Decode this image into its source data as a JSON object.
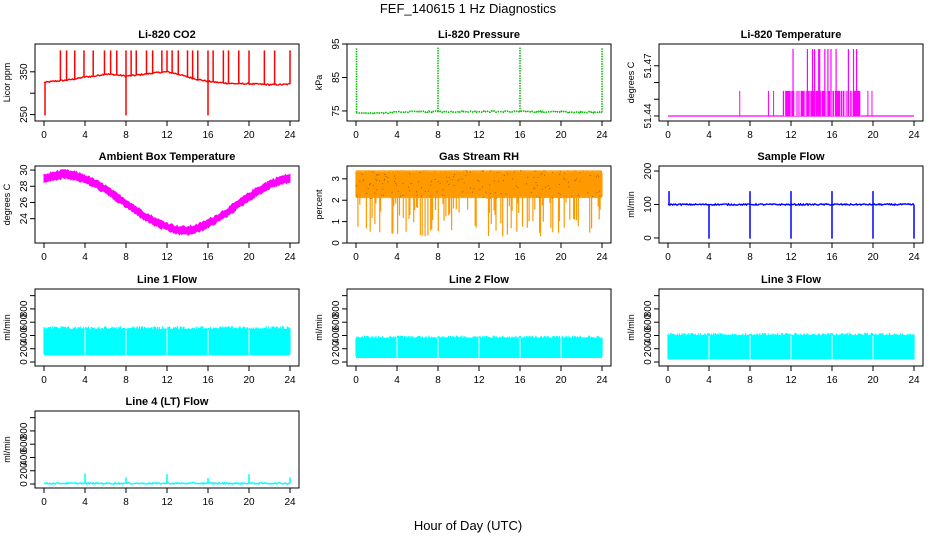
{
  "figure": {
    "title": "FEF_140615  1 Hz Diagnostics",
    "xlabel": "Hour of Day (UTC)"
  },
  "chart_data": [
    {
      "type": "line",
      "title": "Li-820 CO2",
      "ylabel": "Licor ppm",
      "xlim": [
        0,
        24
      ],
      "xticks": [
        0,
        4,
        8,
        12,
        16,
        20,
        24
      ],
      "ylim": [
        235,
        415
      ],
      "yticks": [
        250,
        300,
        350
      ],
      "ytick_labels": [
        "250",
        "",
        "350"
      ],
      "color": "#ff0000",
      "style": "line",
      "series": [
        {
          "x": [
            0,
            1,
            2,
            3,
            4,
            5,
            6,
            7,
            8,
            9,
            10,
            11,
            12,
            13,
            14,
            15,
            16,
            17,
            18,
            19,
            20,
            21,
            22,
            23,
            24
          ],
          "y": [
            325,
            328,
            330,
            333,
            338,
            340,
            345,
            343,
            340,
            342,
            345,
            348,
            350,
            345,
            338,
            332,
            328,
            325,
            323,
            322,
            322,
            321,
            320,
            320,
            321
          ],
          "spikes_up": [
            1.6,
            2.2,
            3.0,
            3.9,
            4.8,
            5.9,
            6.5,
            7.1,
            8.0,
            8.5,
            9.0,
            10.0,
            10.6,
            11.5,
            12.0,
            12.5,
            13.1,
            14.0,
            14.5,
            15.0,
            16.0,
            16.5,
            17.5,
            18.0,
            19.0,
            20.0,
            21.5,
            22.5,
            24.0
          ],
          "spike_top": 400,
          "spikes_down": [
            0.1,
            8.0,
            16.0
          ],
          "spike_bottom": 248
        }
      ]
    },
    {
      "type": "line",
      "title": "Li-820 Pressure",
      "ylabel": "kPa",
      "xlim": [
        0,
        24
      ],
      "xticks": [
        0,
        4,
        8,
        12,
        16,
        20,
        24
      ],
      "ylim": [
        72,
        95
      ],
      "yticks": [
        75,
        85,
        95
      ],
      "ytick_labels": [
        "75",
        "85",
        "95"
      ],
      "color": "#00bb00",
      "style": "dotted",
      "series": [
        {
          "x": [
            0,
            0.5,
            3.5,
            3.6,
            8,
            16,
            23.9,
            24
          ],
          "y": [
            74.6,
            74.4,
            74.4,
            74.7,
            74.8,
            74.8,
            74.6,
            74.6
          ],
          "spikes_up": [
            0.05,
            8.0,
            16.0,
            24.0
          ],
          "spike_top": 94,
          "spikes_down": [],
          "spike_bottom": 74
        }
      ]
    },
    {
      "type": "line",
      "title": "Li-820 Temperature",
      "ylabel": "degrees C",
      "xlim": [
        0,
        24
      ],
      "xticks": [
        0,
        4,
        8,
        12,
        16,
        20,
        24
      ],
      "ylim": [
        51.437,
        51.483
      ],
      "yticks": [
        51.44,
        51.45,
        51.46,
        51.47
      ],
      "ytick_labels": [
        "51.44",
        "",
        "",
        "51.47"
      ],
      "color": "#ff00ff",
      "style": "step",
      "series": [
        {
          "base": 51.44,
          "high": 51.455,
          "top": 51.48,
          "band": [
            11.2,
            18.8
          ],
          "spikes_high": [
            7.0,
            9.8,
            10.3,
            19.5,
            19.9
          ],
          "spikes_top": [
            12.2,
            13.6,
            14.1,
            14.3,
            14.7,
            14.8,
            15.3,
            15.6,
            15.9,
            16.4,
            17.6,
            18.1,
            18.4
          ]
        }
      ]
    },
    {
      "type": "line",
      "title": "Ambient Box Temperature",
      "ylabel": "degrees C",
      "xlim": [
        0,
        24
      ],
      "xticks": [
        0,
        4,
        8,
        12,
        16,
        20,
        24
      ],
      "ylim": [
        21,
        30.5
      ],
      "yticks": [
        24,
        26,
        28,
        30
      ],
      "ytick_labels": [
        "24",
        "26",
        "28",
        "30"
      ],
      "color": "#ff00ff",
      "style": "band",
      "series": [
        {
          "x": [
            0,
            1,
            2,
            3,
            4,
            5,
            6,
            7,
            8,
            9,
            10,
            11,
            12,
            13,
            14,
            15,
            16,
            17,
            18,
            19,
            20,
            21,
            22,
            23,
            24
          ],
          "y": [
            28.9,
            29.3,
            29.5,
            29.3,
            28.9,
            28.3,
            27.6,
            26.7,
            25.9,
            25.0,
            24.2,
            23.5,
            23.0,
            22.6,
            22.5,
            22.8,
            23.4,
            24.1,
            24.9,
            25.8,
            26.7,
            27.5,
            28.2,
            28.7,
            29.0
          ],
          "spread": 0.6
        }
      ]
    },
    {
      "type": "line",
      "title": "Gas Stream RH",
      "ylabel": "percent",
      "xlim": [
        0,
        24
      ],
      "xticks": [
        0,
        4,
        8,
        12,
        16,
        20,
        24
      ],
      "ylim": [
        0,
        3.6
      ],
      "yticks": [
        0,
        1,
        2,
        3
      ],
      "ytick_labels": [
        "0",
        "1",
        "2",
        "3"
      ],
      "color": "#ff9900",
      "style": "noise",
      "series": [
        {
          "upper": 3.4,
          "lower": 2.1,
          "min_dips": 0.3
        }
      ]
    },
    {
      "type": "line",
      "title": "Sample Flow",
      "ylabel": "ml/min",
      "xlim": [
        0,
        24
      ],
      "xticks": [
        0,
        4,
        8,
        12,
        16,
        20,
        24
      ],
      "ylim": [
        -15,
        215
      ],
      "yticks": [
        0,
        100,
        200
      ],
      "ytick_labels": [
        "0",
        "100",
        "200"
      ],
      "color": "#0000ff",
      "style": "line",
      "series": [
        {
          "x": [
            0,
            24
          ],
          "y": [
            100,
            100
          ],
          "spikes_up": [
            0.1,
            8.0,
            12.0,
            16.0,
            20.0
          ],
          "spike_top": 140,
          "spikes_down": [
            4.0,
            8.0,
            12.0,
            16.0,
            20.0,
            24.0
          ],
          "spike_bottom": -2
        }
      ]
    },
    {
      "type": "area",
      "title": "Line 1 Flow",
      "ylabel": "ml/min",
      "xlim": [
        0,
        24
      ],
      "xticks": [
        0,
        4,
        8,
        12,
        16,
        20,
        24
      ],
      "ylim": [
        -60,
        1100
      ],
      "yticks": [
        0,
        200,
        400,
        600,
        800,
        1000
      ],
      "ytick_labels": [
        "0",
        "200",
        "400",
        "600",
        "800",
        ""
      ],
      "color": "#00ffff",
      "style": "noise",
      "series": [
        {
          "upper": 540,
          "lower": 100,
          "gaps": [
            4,
            8,
            12,
            16,
            20
          ]
        }
      ]
    },
    {
      "type": "area",
      "title": "Line 2 Flow",
      "ylabel": "ml/min",
      "xlim": [
        0,
        24
      ],
      "xticks": [
        0,
        4,
        8,
        12,
        16,
        20,
        24
      ],
      "ylim": [
        -60,
        1100
      ],
      "yticks": [
        0,
        200,
        400,
        600,
        800,
        1000
      ],
      "ytick_labels": [
        "0",
        "200",
        "400",
        "600",
        "800",
        ""
      ],
      "color": "#00ffff",
      "style": "noise",
      "series": [
        {
          "upper": 400,
          "lower": 60,
          "gaps": [
            4,
            8,
            12,
            16,
            20
          ]
        }
      ]
    },
    {
      "type": "area",
      "title": "Line 3 Flow",
      "ylabel": "ml/min",
      "xlim": [
        0,
        24
      ],
      "xticks": [
        0,
        4,
        8,
        12,
        16,
        20,
        24
      ],
      "ylim": [
        -60,
        1100
      ],
      "yticks": [
        0,
        200,
        400,
        600,
        800,
        1000
      ],
      "ytick_labels": [
        "0",
        "200",
        "400",
        "600",
        "800",
        ""
      ],
      "color": "#00ffff",
      "style": "noise",
      "series": [
        {
          "upper": 440,
          "lower": 40,
          "gaps": [
            4,
            8,
            12,
            16,
            20
          ]
        }
      ]
    },
    {
      "type": "line",
      "title": "Line 4 (LT) Flow",
      "ylabel": "ml/min",
      "xlim": [
        0,
        24
      ],
      "xticks": [
        0,
        4,
        8,
        12,
        16,
        20,
        24
      ],
      "ylim": [
        -60,
        1100
      ],
      "yticks": [
        0,
        200,
        400,
        600,
        800,
        1000
      ],
      "ytick_labels": [
        "0",
        "200",
        "400",
        "600",
        "800",
        ""
      ],
      "color": "#00ffff",
      "style": "line",
      "series": [
        {
          "x": [
            0,
            24
          ],
          "y": [
            10,
            10
          ],
          "spikes_up": [
            4.0,
            8.0,
            12.0,
            16.0,
            20.0,
            24.0
          ],
          "spike_heights": [
            160,
            100,
            150,
            90,
            150,
            100
          ],
          "spikes_down": [],
          "spike_bottom": 0
        }
      ]
    }
  ]
}
